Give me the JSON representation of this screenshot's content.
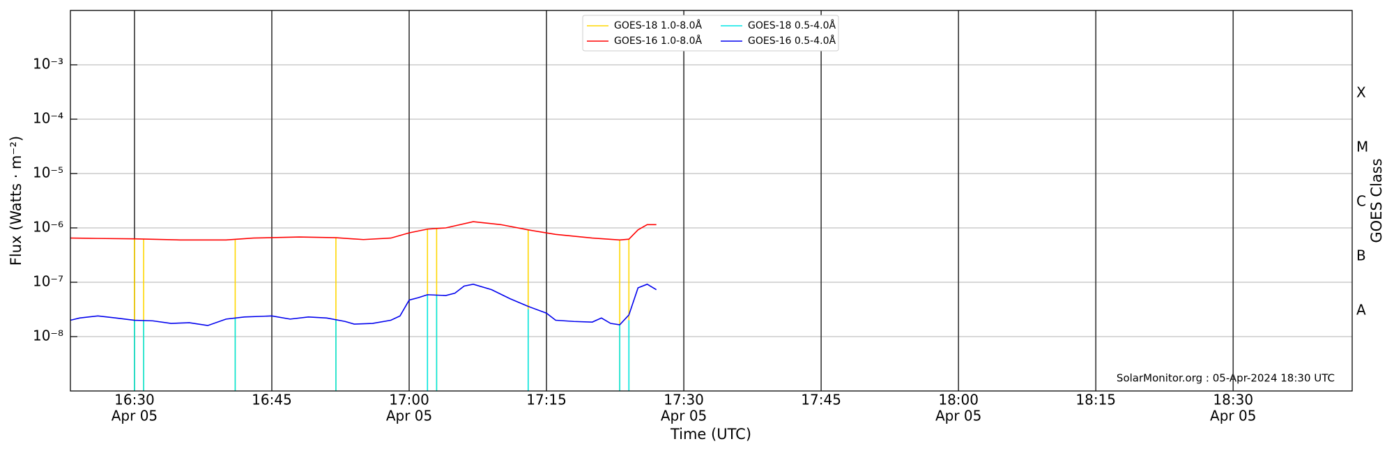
{
  "chart_data": {
    "type": "line",
    "xlabel": "Time (UTC)",
    "ylabel": "Flux (Watts · m⁻²)",
    "y2label": "GOES Class",
    "annotation": "SolarMonitor.org : 05-Apr-2024 18:30 UTC",
    "log_y": true,
    "grid": true,
    "legend": "upper center",
    "xlim": [
      "04-05T16:23",
      "04-05T18:43"
    ],
    "xticks": [
      {
        "value": "04-05T16:30",
        "label": "16:30",
        "date": "Apr 05"
      },
      {
        "value": "04-05T16:45",
        "label": "16:45"
      },
      {
        "value": "04-05T17:00",
        "label": "17:00",
        "date": "Apr 05"
      },
      {
        "value": "04-05T17:15",
        "label": "17:15"
      },
      {
        "value": "04-05T17:30",
        "label": "17:30",
        "date": "Apr 05"
      },
      {
        "value": "04-05T17:45",
        "label": "17:45"
      },
      {
        "value": "04-05T18:00",
        "label": "18:00",
        "date": "Apr 05"
      },
      {
        "value": "04-05T18:15",
        "label": "18:15"
      },
      {
        "value": "04-05T18:30",
        "label": "18:30",
        "date": "Apr 05"
      }
    ],
    "ylim": [
      1e-09,
      0.01
    ],
    "yticks": [
      {
        "value": 1e-08,
        "label": "10⁻⁸"
      },
      {
        "value": 1e-07,
        "label": "10⁻⁷"
      },
      {
        "value": 1e-06,
        "label": "10⁻⁶"
      },
      {
        "value": 1e-05,
        "label": "10⁻⁵"
      },
      {
        "value": 0.0001,
        "label": "10⁻⁴"
      },
      {
        "value": 0.001,
        "label": "10⁻³"
      }
    ],
    "y2lim": [
      1e-09,
      0.01
    ],
    "y2ticks": [
      {
        "value": 3e-08,
        "label": "A"
      },
      {
        "value": 3e-07,
        "label": "B"
      },
      {
        "value": 3e-06,
        "label": "C"
      },
      {
        "value": 3e-05,
        "label": "M"
      },
      {
        "value": 0.0003,
        "label": "X"
      }
    ],
    "series": [
      {
        "name": "GOES-18 1.0-8.0Å",
        "color": "#ffd700",
        "x": [
          "04-05T16:30",
          "04-05T16:30",
          "04-05T16:30",
          "04-05T16:31",
          "04-05T16:31",
          "04-05T16:31",
          "04-05T16:41",
          "04-05T16:41",
          "04-05T16:41",
          "04-05T16:52",
          "04-05T16:52",
          "04-05T16:52",
          "04-05T17:02",
          "04-05T17:02",
          "04-05T17:02",
          "04-05T17:03",
          "04-05T17:03",
          "04-05T17:03",
          "04-05T17:13",
          "04-05T17:13",
          "04-05T17:13",
          "04-05T17:23",
          "04-05T17:23",
          "04-05T17:23",
          "04-05T17:24",
          "04-05T17:24"
        ],
        "values": [
          6.3e-07,
          1e-09,
          null,
          6.2e-07,
          1e-09,
          null,
          6e-07,
          1e-09,
          null,
          6.6e-07,
          1e-09,
          null,
          9.5e-07,
          1e-09,
          null,
          1e-06,
          1e-09,
          null,
          9.2e-07,
          1e-09,
          null,
          6e-07,
          1e-09,
          null,
          6.2e-07,
          1e-09
        ]
      },
      {
        "name": "GOES-16 1.0-8.0Å",
        "color": "#ff0000",
        "x": [
          "04-05T16:23",
          "04-05T16:26",
          "04-05T16:30",
          "04-05T16:35",
          "04-05T16:40",
          "04-05T16:43",
          "04-05T16:48",
          "04-05T16:52",
          "04-05T16:55",
          "04-05T16:58",
          "04-05T17:00",
          "04-05T17:02",
          "04-05T17:04",
          "04-05T17:07",
          "04-05T17:10",
          "04-05T17:13",
          "04-05T17:16",
          "04-05T17:20",
          "04-05T17:23",
          "04-05T17:24",
          "04-05T17:25",
          "04-05T17:26",
          "04-05T17:27"
        ],
        "values": [
          6.5e-07,
          6.4e-07,
          6.3e-07,
          6e-07,
          6e-07,
          6.5e-07,
          6.8e-07,
          6.6e-07,
          6.1e-07,
          6.5e-07,
          8.1e-07,
          9.5e-07,
          1e-06,
          1.3e-06,
          1.15e-06,
          9.2e-07,
          7.6e-07,
          6.5e-07,
          6e-07,
          6.2e-07,
          9.2e-07,
          1.15e-06,
          1.15e-06
        ]
      },
      {
        "name": "GOES-18 0.5-4.0Å",
        "color": "#00e5e5",
        "x": [
          "04-05T16:30",
          "04-05T16:30",
          "04-05T16:30",
          "04-05T16:31",
          "04-05T16:31",
          "04-05T16:31",
          "04-05T16:41",
          "04-05T16:41",
          "04-05T16:41",
          "04-05T16:52",
          "04-05T16:52",
          "04-05T16:52",
          "04-05T17:02",
          "04-05T17:02",
          "04-05T17:02",
          "04-05T17:03",
          "04-05T17:03",
          "04-05T17:03",
          "04-05T17:13",
          "04-05T17:13",
          "04-05T17:13",
          "04-05T17:23",
          "04-05T17:23",
          "04-05T17:23",
          "04-05T17:24",
          "04-05T17:24"
        ],
        "values": [
          2e-08,
          1e-09,
          null,
          2e-08,
          1e-09,
          null,
          2.2e-08,
          1e-09,
          null,
          2e-08,
          1e-09,
          null,
          5.9e-08,
          1e-09,
          null,
          5.9e-08,
          1e-09,
          null,
          3.2e-08,
          1e-09,
          null,
          1.7e-08,
          1e-09,
          null,
          2e-08,
          1e-09
        ]
      },
      {
        "name": "GOES-16 0.5-4.0Å",
        "color": "#0000ee",
        "x": [
          "04-05T16:23",
          "04-05T16:24",
          "04-05T16:26",
          "04-05T16:28",
          "04-05T16:30",
          "04-05T16:32",
          "04-05T16:34",
          "04-05T16:36",
          "04-05T16:38",
          "04-05T16:40",
          "04-05T16:42",
          "04-05T16:45",
          "04-05T16:47",
          "04-05T16:49",
          "04-05T16:51",
          "04-05T16:53",
          "04-05T16:54",
          "04-05T16:56",
          "04-05T16:58",
          "04-05T16:59",
          "04-05T17:00",
          "04-05T17:01",
          "04-05T17:02",
          "04-05T17:04",
          "04-05T17:05",
          "04-05T17:06",
          "04-05T17:07",
          "04-05T17:09",
          "04-05T17:11",
          "04-05T17:13",
          "04-05T17:15",
          "04-05T17:16",
          "04-05T17:18",
          "04-05T17:20",
          "04-05T17:21",
          "04-05T17:22",
          "04-05T17:23",
          "04-05T17:24",
          "04-05T17:25",
          "04-05T17:26",
          "04-05T17:27"
        ],
        "values": [
          2e-08,
          2.2e-08,
          2.4e-08,
          2.2e-08,
          2e-08,
          1.95e-08,
          1.75e-08,
          1.8e-08,
          1.6e-08,
          2.1e-08,
          2.3e-08,
          2.4e-08,
          2.1e-08,
          2.3e-08,
          2.2e-08,
          1.9e-08,
          1.7e-08,
          1.75e-08,
          2e-08,
          2.4e-08,
          4.7e-08,
          5.2e-08,
          5.9e-08,
          5.7e-08,
          6.3e-08,
          8.5e-08,
          9.2e-08,
          7.3e-08,
          5e-08,
          3.6e-08,
          2.7e-08,
          2e-08,
          1.9e-08,
          1.85e-08,
          2.2e-08,
          1.75e-08,
          1.65e-08,
          2.5e-08,
          7.9e-08,
          9.2e-08,
          7.3e-08
        ]
      }
    ]
  }
}
